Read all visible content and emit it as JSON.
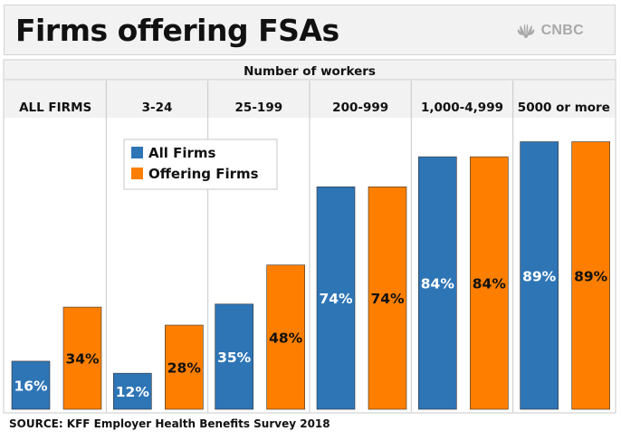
{
  "title": "Firms offering FSAs",
  "logo_text": "CNBC",
  "source": "SOURCE: KFF Employer Health Benefits Survey 2018",
  "colors": {
    "all_firms": "#2e75b6",
    "offering_firms": "#fe7f00"
  },
  "chart_data": {
    "type": "bar",
    "header": "Number of workers",
    "categories": [
      "ALL FIRMS",
      "3-24",
      "25-199",
      "200-999",
      "1,000-4,999",
      "5000 or more"
    ],
    "series": [
      {
        "name": "All Firms",
        "values": [
          16,
          12,
          35,
          74,
          84,
          89
        ],
        "labels": [
          "16%",
          "12%",
          "35%",
          "74%",
          "84%",
          "89%"
        ]
      },
      {
        "name": "Offering Firms",
        "values": [
          34,
          28,
          48,
          74,
          84,
          89
        ],
        "labels": [
          "34%",
          "28%",
          "48%",
          "74%",
          "84%",
          "89%"
        ]
      }
    ],
    "ylim": [
      0,
      100
    ],
    "legend": "top-left",
    "grid": false
  }
}
